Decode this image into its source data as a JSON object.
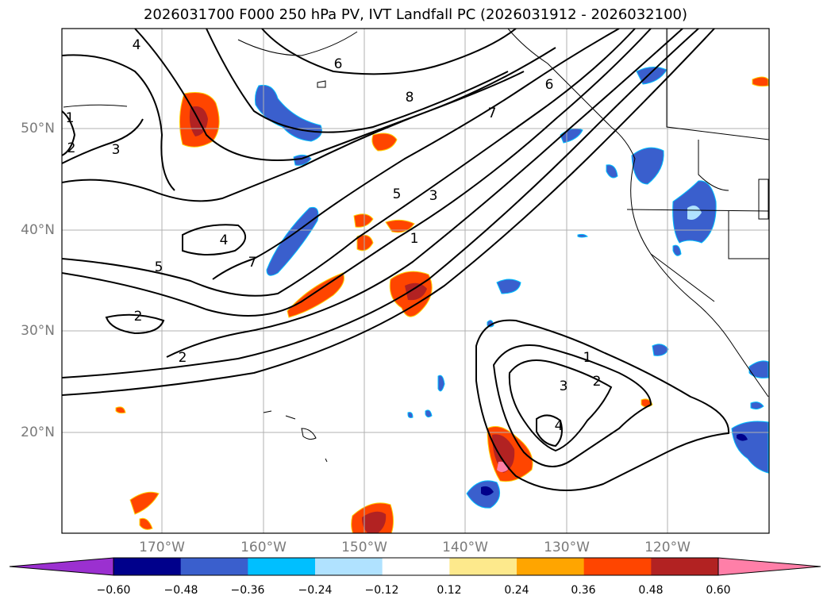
{
  "title": "2026031700 F000 250 hPa PV, IVT Landfall PC (2026031912 - 2026032100)",
  "lat_labels": [
    "50°N",
    "40°N",
    "30°N",
    "20°N"
  ],
  "lon_labels": [
    "170°W",
    "160°W",
    "150°W",
    "140°W",
    "130°W",
    "120°W"
  ],
  "contour_labels": [
    "4",
    "6",
    "1",
    "2",
    "3",
    "8",
    "7",
    "6",
    "5",
    "3",
    "1",
    "4",
    "7",
    "5",
    "2",
    "2",
    "1",
    "2",
    "3",
    "4"
  ],
  "colorbar": {
    "tick_labels": [
      "−0.60",
      "−0.48",
      "−0.36",
      "−0.24",
      "−0.12",
      "0.12",
      "0.24",
      "0.36",
      "0.48",
      "0.60"
    ],
    "colors": [
      "#9b30d0",
      "#00008b",
      "#3a5fcd",
      "#00bfff",
      "#b0e2ff",
      "#ffffff",
      "#fde98c",
      "#ffa500",
      "#ff4500",
      "#b22222",
      "#ff7fa8"
    ]
  }
}
